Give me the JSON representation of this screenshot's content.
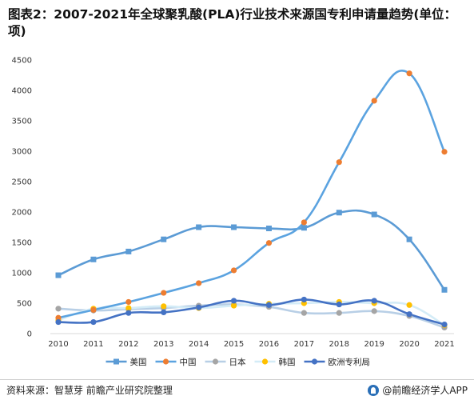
{
  "title": "图表2：2007-2021年全球聚乳酸(PLA)行业技术来源国专利申请量趋势(单位：项)",
  "footer": {
    "source": "资料来源：智慧芽 前瞻产业研究院整理",
    "brand": "@前瞻经济学人APP"
  },
  "chart_data": {
    "type": "line",
    "title": "图表2：2007-2021年全球聚乳酸(PLA)行业技术来源国专利申请量趋势(单位：项)",
    "xlabel": "",
    "ylabel": "",
    "x": [
      "2010",
      "2011",
      "2012",
      "2013",
      "2014",
      "2015",
      "2016",
      "2017",
      "2018",
      "2019",
      "2020",
      "2021"
    ],
    "yticks": [
      "0",
      "500",
      "1000",
      "1500",
      "2000",
      "2500",
      "3000",
      "3500",
      "4000",
      "4500"
    ],
    "ylim": [
      0,
      4500
    ],
    "grid": false,
    "legend_position": "bottom",
    "smooth": true,
    "series": [
      {
        "name": "美国",
        "color": "#5b9bd5",
        "marker": "square",
        "values": [
          960,
          1220,
          1350,
          1550,
          1750,
          1750,
          1730,
          1740,
          1990,
          1960,
          1550,
          720
        ]
      },
      {
        "name": "中国",
        "color": "#ed7d31",
        "line_color": "#5ba3e0",
        "marker": "circle",
        "values": [
          260,
          390,
          520,
          670,
          830,
          1040,
          1490,
          1830,
          2820,
          3830,
          4280,
          2990
        ]
      },
      {
        "name": "日本",
        "color": "#a5a5a5",
        "line_color": "#b8cfe6",
        "marker": "circle",
        "values": [
          410,
          380,
          400,
          420,
          460,
          480,
          440,
          340,
          340,
          370,
          290,
          100
        ]
      },
      {
        "name": "韩国",
        "color": "#ffc000",
        "line_color": "#d4ecf7",
        "marker": "circle",
        "values": [
          220,
          410,
          420,
          450,
          420,
          460,
          490,
          500,
          520,
          500,
          470,
          140
        ]
      },
      {
        "name": "欧洲专利局",
        "color": "#4472c4",
        "marker": "circle",
        "values": [
          190,
          190,
          340,
          350,
          430,
          540,
          470,
          560,
          480,
          540,
          320,
          150
        ]
      }
    ]
  }
}
